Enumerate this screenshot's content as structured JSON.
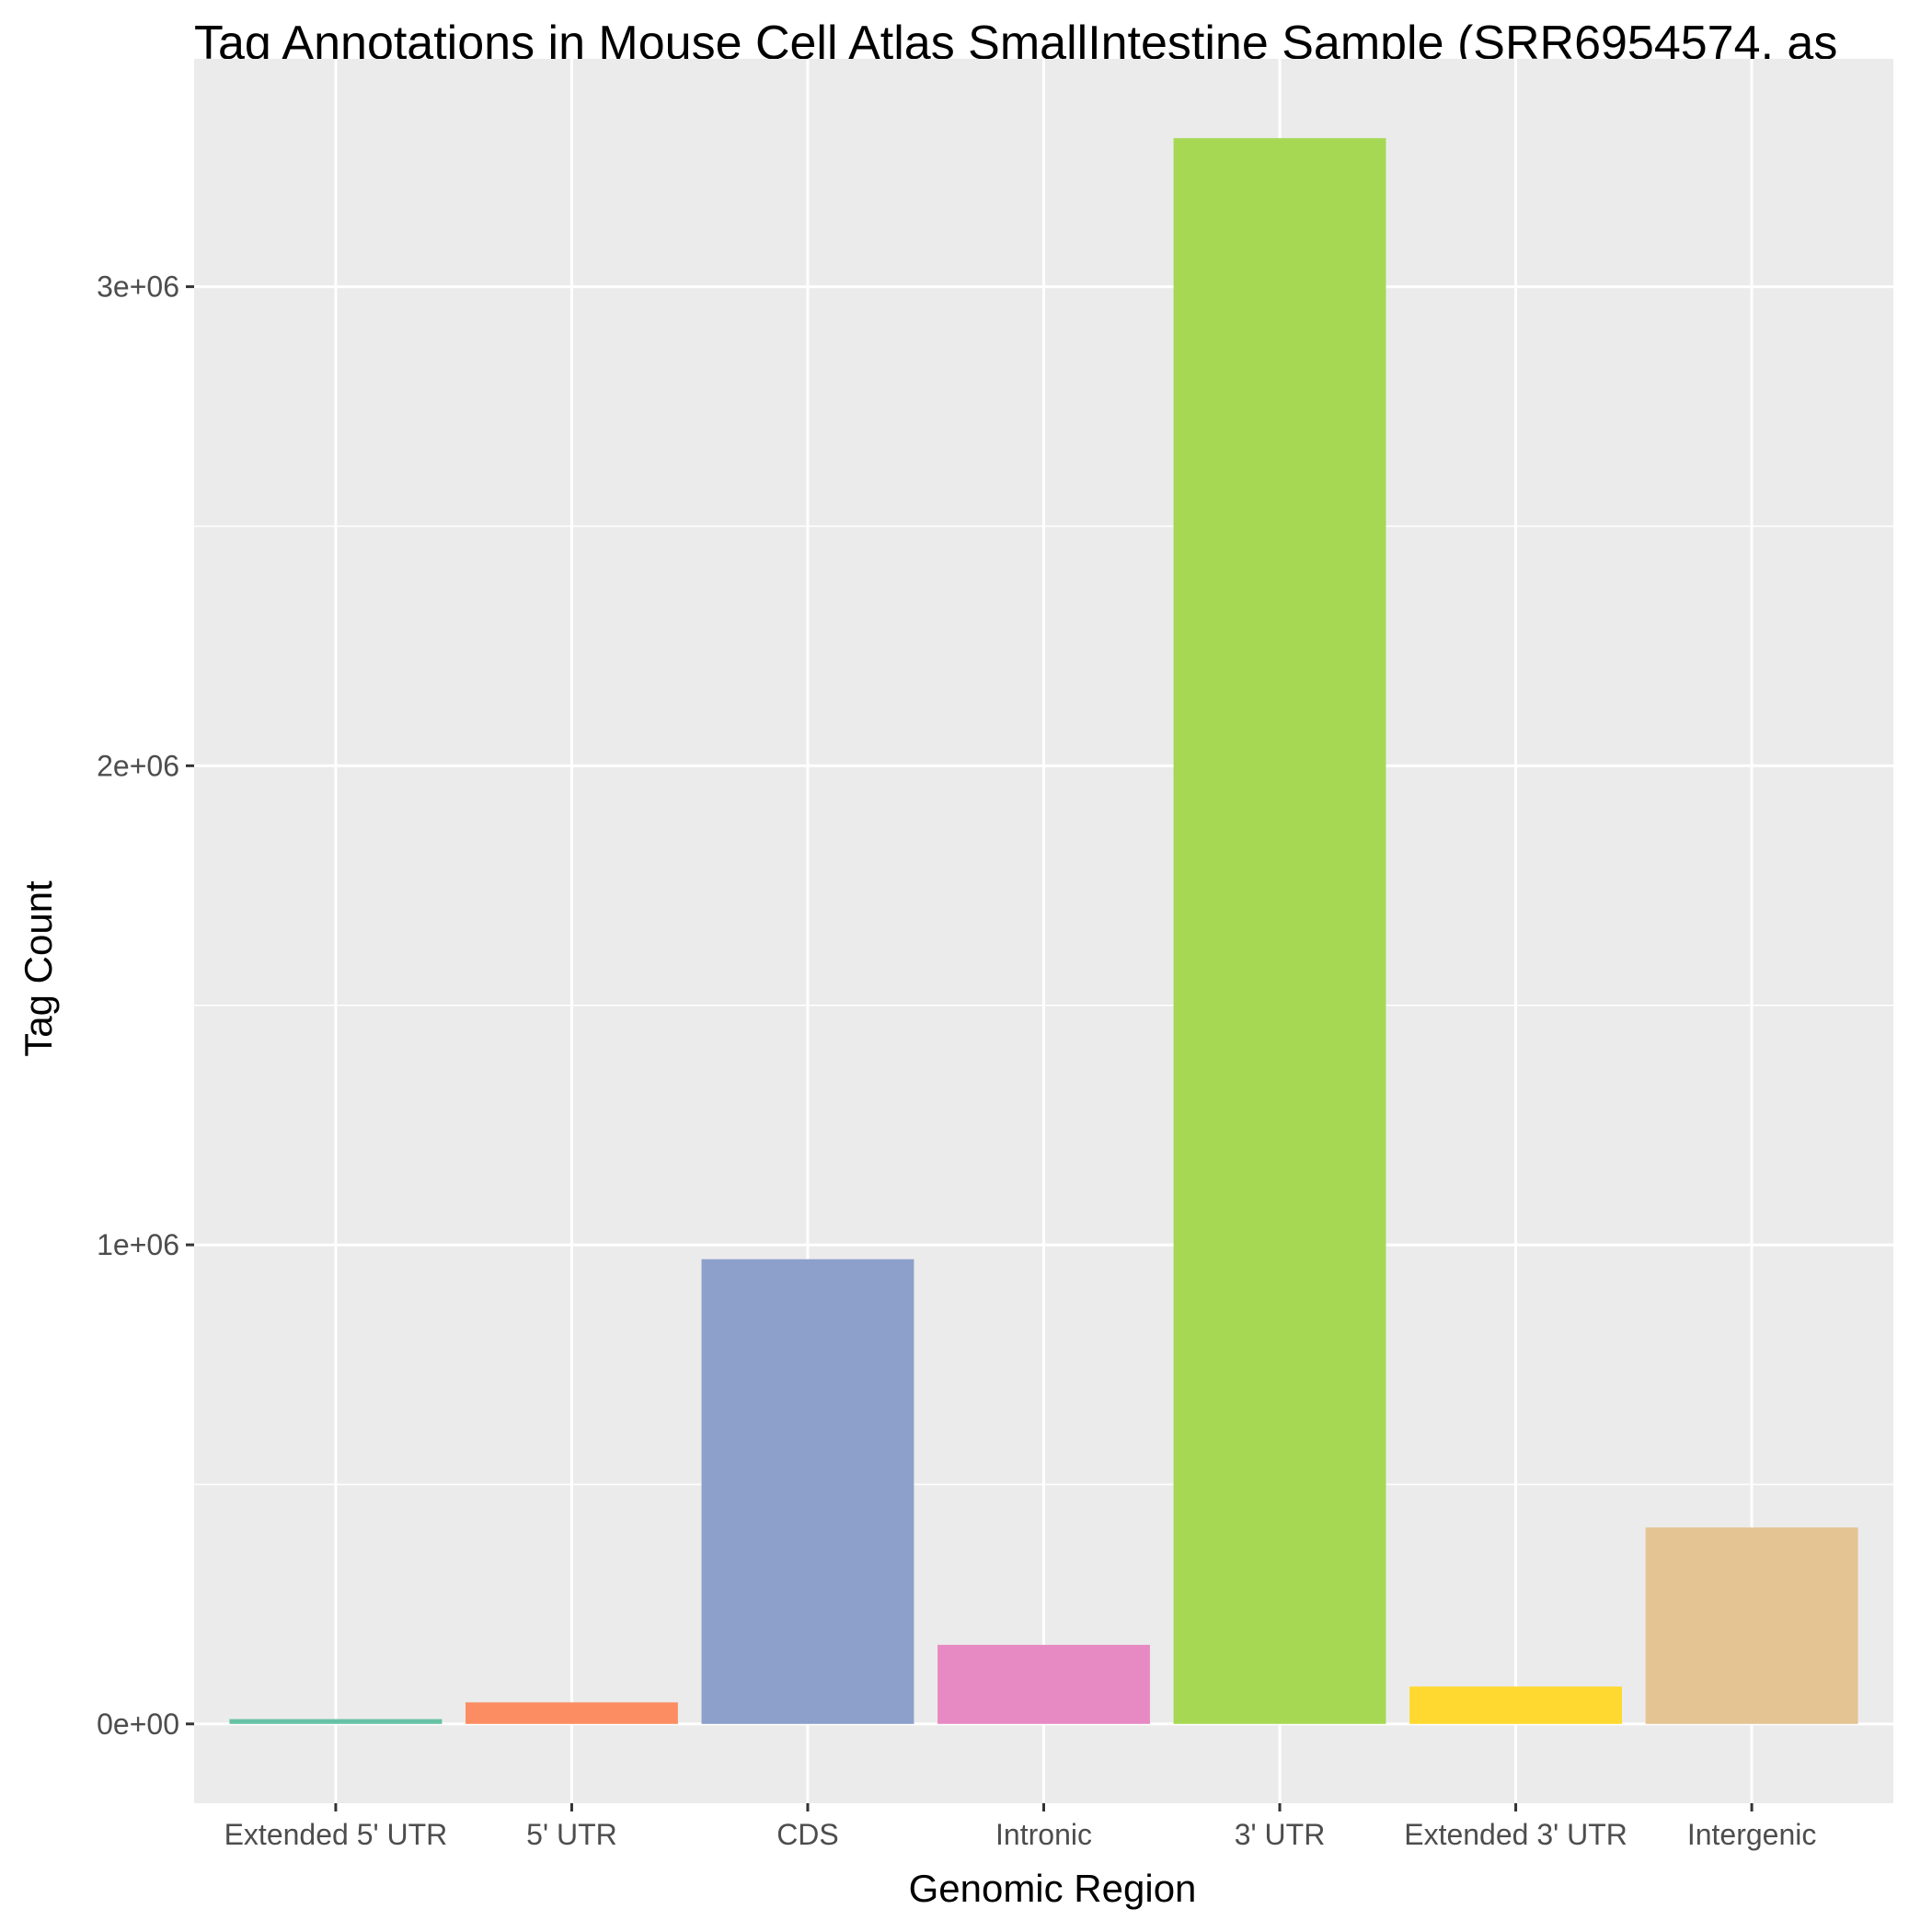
{
  "chart_data": {
    "type": "bar",
    "title": "Tag Annotations in Mouse Cell Atlas SmallIntestine Sample (SRR6954574, as",
    "xlabel": "Genomic Region",
    "ylabel": "Tag Count",
    "categories": [
      "Extended 5' UTR",
      "5' UTR",
      "CDS",
      "Intronic",
      "3' UTR",
      "Extended 3' UTR",
      "Intergenic"
    ],
    "values": [
      10000,
      45000,
      970000,
      165000,
      3310000,
      78000,
      410000
    ],
    "colors": [
      "#66c2a5",
      "#fc8d62",
      "#8da0cb",
      "#e78ac3",
      "#a6d854",
      "#ffd92f",
      "#e5c494"
    ],
    "yticks": [
      0,
      1000000,
      2000000,
      3000000
    ],
    "ytick_labels": [
      "0e+00",
      "1e+06",
      "2e+06",
      "3e+06"
    ],
    "ylim": [
      -165500,
      3475500
    ],
    "grid": true,
    "legend": "none",
    "panel_color": "#ebebeb",
    "grid_color": "#ffffff"
  }
}
